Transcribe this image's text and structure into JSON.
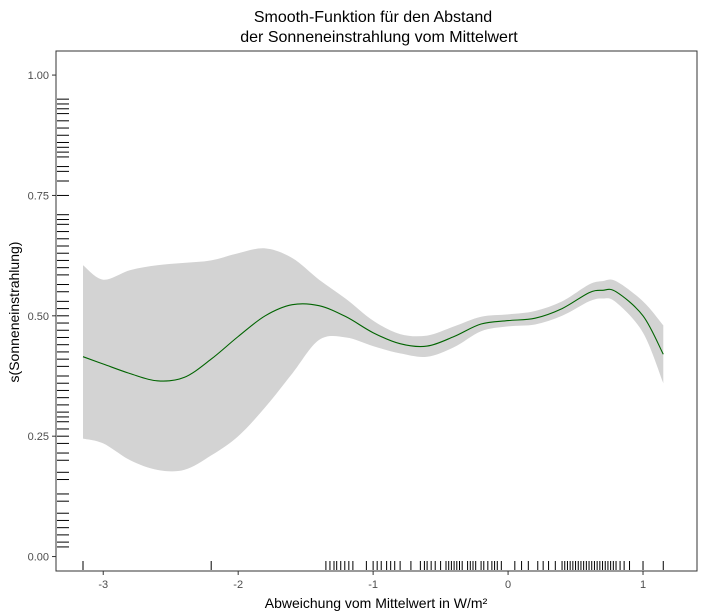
{
  "chart_data": {
    "type": "line",
    "title_line1": "Smooth-Funktion für den Abstand",
    "title_line2": "der Sonneneinstrahlung vom Mittelwert",
    "xlabel": "Abweichung vom Mittelwert in W/m²",
    "ylabel": "s(Sonneneinstrahlung)",
    "xlim": [
      -3.35,
      1.4
    ],
    "ylim": [
      -0.03,
      1.05
    ],
    "x_ticks": [
      -3,
      -2,
      -1,
      0,
      1
    ],
    "x_tick_labels": [
      "-3",
      "-2",
      "-1",
      "0",
      "1"
    ],
    "y_ticks": [
      0,
      0.25,
      0.5,
      0.75,
      1.0
    ],
    "y_tick_labels": [
      "0.00",
      "0.25",
      "0.50",
      "0.75",
      "1.00"
    ],
    "grid": false,
    "colors": {
      "line": "#006400",
      "band": "#d3d3d3",
      "rug": "#000000",
      "frame": "#333333"
    },
    "series": [
      {
        "x": [
          -3.15,
          -3.0,
          -2.8,
          -2.6,
          -2.4,
          -2.2,
          -2.0,
          -1.8,
          -1.6,
          -1.4,
          -1.2,
          -1.0,
          -0.8,
          -0.6,
          -0.4,
          -0.2,
          0.0,
          0.2,
          0.4,
          0.6,
          0.7,
          0.8,
          1.0,
          1.15
        ],
        "fit": [
          0.415,
          0.4,
          0.38,
          0.365,
          0.372,
          0.41,
          0.457,
          0.5,
          0.523,
          0.521,
          0.498,
          0.465,
          0.442,
          0.437,
          0.457,
          0.483,
          0.49,
          0.495,
          0.515,
          0.548,
          0.553,
          0.55,
          0.5,
          0.42
        ],
        "lower": [
          0.245,
          0.235,
          0.2,
          0.18,
          0.18,
          0.21,
          0.25,
          0.31,
          0.38,
          0.45,
          0.455,
          0.437,
          0.422,
          0.415,
          0.435,
          0.468,
          0.478,
          0.482,
          0.5,
          0.53,
          0.536,
          0.528,
          0.465,
          0.36
        ],
        "upper": [
          0.605,
          0.575,
          0.595,
          0.605,
          0.61,
          0.615,
          0.63,
          0.64,
          0.62,
          0.575,
          0.535,
          0.49,
          0.462,
          0.459,
          0.478,
          0.498,
          0.503,
          0.51,
          0.53,
          0.565,
          0.572,
          0.572,
          0.53,
          0.48
        ]
      }
    ],
    "rug_x": [
      -3.15,
      -2.2,
      -1.35,
      -1.32,
      -1.29,
      -1.27,
      -1.24,
      -1.21,
      -1.18,
      -1.15,
      -1.05,
      -1.0,
      -0.97,
      -0.94,
      -0.9,
      -0.87,
      -0.84,
      -0.8,
      -0.72,
      -0.65,
      -0.62,
      -0.6,
      -0.57,
      -0.54,
      -0.5,
      -0.46,
      -0.44,
      -0.42,
      -0.4,
      -0.38,
      -0.36,
      -0.34,
      -0.3,
      -0.28,
      -0.26,
      -0.24,
      -0.2,
      -0.18,
      -0.15,
      -0.12,
      -0.1,
      -0.08,
      -0.05,
      0.05,
      0.1,
      0.15,
      0.22,
      0.26,
      0.3,
      0.35,
      0.4,
      0.42,
      0.44,
      0.46,
      0.48,
      0.5,
      0.52,
      0.54,
      0.56,
      0.58,
      0.6,
      0.62,
      0.64,
      0.66,
      0.68,
      0.7,
      0.72,
      0.74,
      0.76,
      0.78,
      0.8,
      0.83,
      0.86,
      0.9,
      1.0,
      1.15
    ],
    "rug_y": [
      0.02,
      0.03,
      0.045,
      0.06,
      0.075,
      0.09,
      0.115,
      0.13,
      0.16,
      0.175,
      0.2,
      0.215,
      0.235,
      0.25,
      0.265,
      0.28,
      0.29,
      0.3,
      0.315,
      0.33,
      0.345,
      0.36,
      0.375,
      0.395,
      0.41,
      0.425,
      0.44,
      0.455,
      0.47,
      0.485,
      0.5,
      0.515,
      0.53,
      0.55,
      0.565,
      0.585,
      0.6,
      0.615,
      0.63,
      0.645,
      0.66,
      0.675,
      0.69,
      0.7,
      0.71,
      0.75,
      0.78,
      0.8,
      0.81,
      0.83,
      0.84,
      0.85,
      0.86,
      0.875,
      0.89,
      0.905,
      0.92,
      0.93,
      0.94,
      0.95
    ]
  }
}
